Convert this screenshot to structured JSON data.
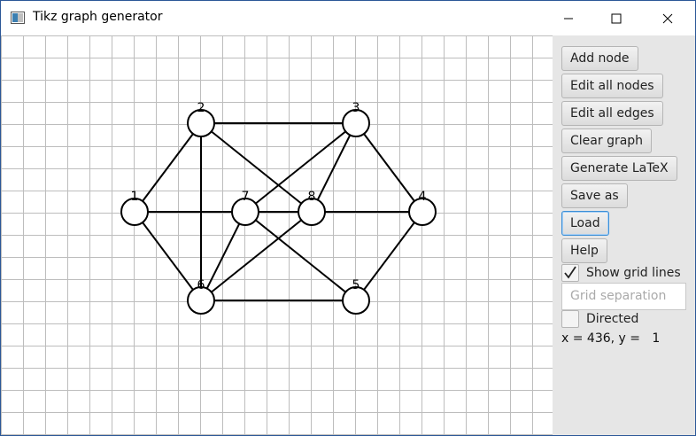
{
  "window": {
    "title": "Tikz graph generator"
  },
  "toolbar": {
    "add_node": "Add node",
    "edit_all_nodes": "Edit all nodes",
    "edit_all_edges": "Edit all edges",
    "clear_graph": "Clear graph",
    "generate_latex": "Generate LaTeX",
    "save_as": "Save as",
    "load": "Load",
    "help": "Help",
    "show_grid_lines": "Show grid lines",
    "show_grid_checked": true,
    "grid_separation_placeholder": "Grid separation",
    "directed": "Directed",
    "directed_checked": false,
    "coords_readout": "x = 436, y =   1"
  },
  "graph": {
    "nodes": [
      {
        "id": "1",
        "label": "1"
      },
      {
        "id": "2",
        "label": "2"
      },
      {
        "id": "3",
        "label": "3"
      },
      {
        "id": "4",
        "label": "4"
      },
      {
        "id": "5",
        "label": "5"
      },
      {
        "id": "6",
        "label": "6"
      },
      {
        "id": "7",
        "label": "7"
      },
      {
        "id": "8",
        "label": "8"
      }
    ],
    "edges": [
      [
        "1",
        "2"
      ],
      [
        "1",
        "6"
      ],
      [
        "1",
        "8"
      ],
      [
        "2",
        "3"
      ],
      [
        "2",
        "6"
      ],
      [
        "2",
        "8"
      ],
      [
        "3",
        "7"
      ],
      [
        "3",
        "8"
      ],
      [
        "3",
        "4"
      ],
      [
        "4",
        "8"
      ],
      [
        "4",
        "5"
      ],
      [
        "5",
        "6"
      ],
      [
        "5",
        "7"
      ],
      [
        "6",
        "7"
      ],
      [
        "6",
        "8"
      ]
    ]
  }
}
